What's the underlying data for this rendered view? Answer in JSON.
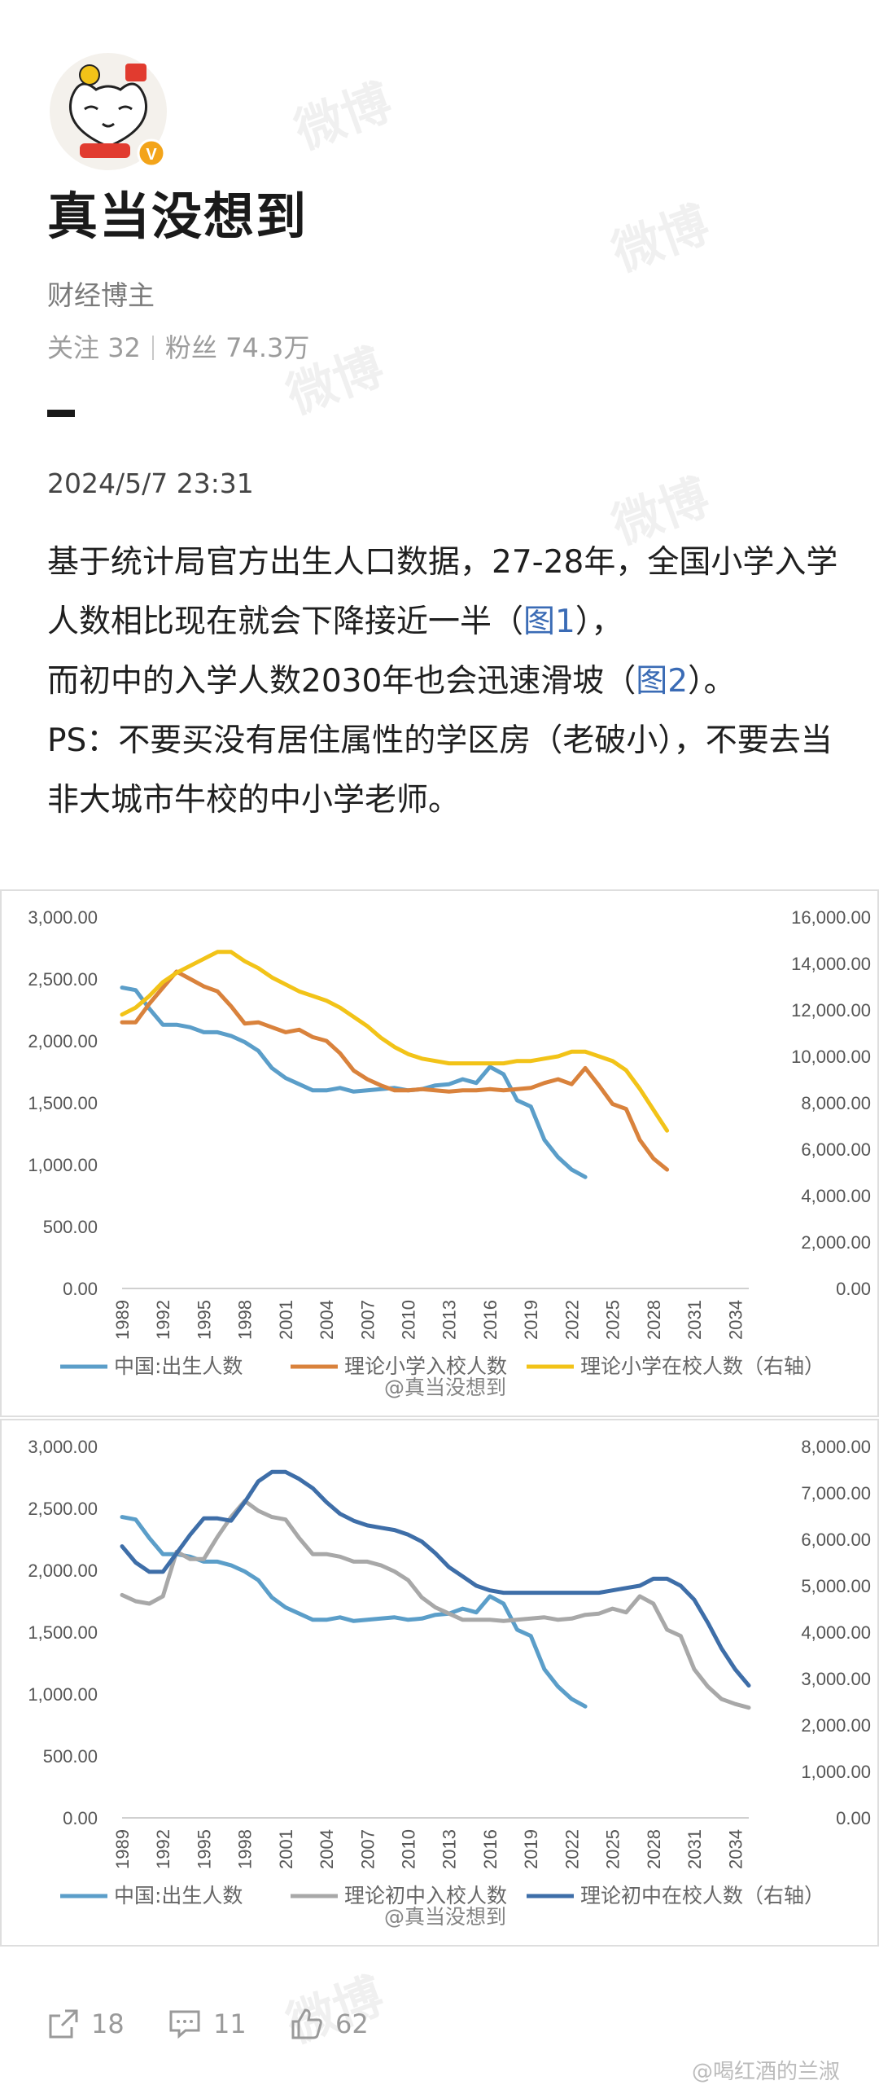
{
  "author": {
    "name": "真当没想到",
    "role": "财经博主",
    "following_label": "关注",
    "following": "32",
    "followers_label": "粉丝",
    "followers": "74.3万",
    "avatar_badge": "V"
  },
  "post": {
    "time": "2024/5/7 23:31",
    "p1a": "基于统计局官方出生人口数据，27-28年，全国小学入学人数相比现在就会下降接近一半（",
    "p1_link": "图1",
    "p1b": "），",
    "p2a": "而初中的入学人数2030年也会迅速滑坡（",
    "p2_link": "图2",
    "p2b": "）。",
    "p3": "PS：不要买没有居住属性的学区房（老破小），不要去当非大城市牛校的中小学老师。"
  },
  "actions": {
    "share": "18",
    "comment": "11",
    "like": "62"
  },
  "watermark_text": "微博",
  "image_watermark": "@真当没想到",
  "credit": "@喝红酒的兰淑",
  "colors": {
    "birth": "#5b9ec9",
    "primary_enroll": "#d9823c",
    "primary_school": "#f2c318",
    "middle_enroll": "#a8a8a8",
    "middle_school": "#3e6ea8"
  },
  "chart_data": [
    {
      "type": "line",
      "title": "",
      "x_ticks": [
        "1989",
        "1992",
        "1995",
        "1998",
        "2001",
        "2004",
        "2007",
        "2010",
        "2013",
        "2016",
        "2019",
        "2022",
        "2025",
        "2028",
        "2031",
        "2034"
      ],
      "xlim": [
        1989,
        2035
      ],
      "y_left": {
        "ticks": [
          "3,000.00",
          "2,500.00",
          "2,000.00",
          "1,500.00",
          "1,000.00",
          "500.00",
          "0.00"
        ],
        "range": [
          0,
          3000
        ]
      },
      "y_right": {
        "ticks": [
          "16,000.00",
          "14,000.00",
          "12,000.00",
          "10,000.00",
          "8,000.00",
          "6,000.00",
          "4,000.00",
          "2,000.00",
          "0.00"
        ],
        "range": [
          0,
          16000
        ]
      },
      "series": [
        {
          "name": "中国:出生人数",
          "axis": "left",
          "color_key": "birth",
          "x": [
            1989,
            1990,
            1991,
            1992,
            1993,
            1994,
            1995,
            1996,
            1997,
            1998,
            1999,
            2000,
            2001,
            2002,
            2003,
            2004,
            2005,
            2006,
            2007,
            2008,
            2009,
            2010,
            2011,
            2012,
            2013,
            2014,
            2015,
            2016,
            2017,
            2018,
            2019,
            2020,
            2021,
            2022,
            2023
          ],
          "values": [
            2430,
            2410,
            2260,
            2130,
            2130,
            2110,
            2070,
            2070,
            2040,
            1990,
            1920,
            1780,
            1700,
            1650,
            1600,
            1600,
            1620,
            1590,
            1600,
            1610,
            1620,
            1600,
            1610,
            1640,
            1650,
            1690,
            1660,
            1790,
            1730,
            1520,
            1470,
            1200,
            1060,
            960,
            900
          ]
        },
        {
          "name": "理论小学入校人数",
          "axis": "left",
          "color_key": "primary_enroll",
          "x": [
            1989,
            1990,
            1991,
            1992,
            1993,
            1994,
            1995,
            1996,
            1997,
            1998,
            1999,
            2000,
            2001,
            2002,
            2003,
            2004,
            2005,
            2006,
            2007,
            2008,
            2009,
            2010,
            2011,
            2012,
            2013,
            2014,
            2015,
            2016,
            2017,
            2018,
            2019,
            2020,
            2021,
            2022,
            2023,
            2024,
            2025,
            2026,
            2027,
            2028,
            2029
          ],
          "values": [
            2150,
            2150,
            2300,
            2430,
            2560,
            2500,
            2440,
            2400,
            2280,
            2140,
            2150,
            2110,
            2070,
            2090,
            2030,
            2000,
            1900,
            1760,
            1690,
            1640,
            1600,
            1600,
            1610,
            1600,
            1590,
            1600,
            1600,
            1610,
            1600,
            1610,
            1620,
            1660,
            1690,
            1650,
            1780,
            1640,
            1490,
            1450,
            1200,
            1050,
            960
          ]
        },
        {
          "name": "理论小学在校人数（右轴）",
          "axis": "right",
          "color_key": "primary_school",
          "x": [
            1989,
            1990,
            1991,
            1992,
            1993,
            1994,
            1995,
            1996,
            1997,
            1998,
            1999,
            2000,
            2001,
            2002,
            2003,
            2004,
            2005,
            2006,
            2007,
            2008,
            2009,
            2010,
            2011,
            2012,
            2013,
            2014,
            2015,
            2016,
            2017,
            2018,
            2019,
            2020,
            2021,
            2022,
            2023,
            2024,
            2025,
            2026,
            2027,
            2028,
            2029
          ],
          "values": [
            11800,
            12100,
            12600,
            13200,
            13600,
            13900,
            14200,
            14500,
            14500,
            14100,
            13800,
            13400,
            13100,
            12800,
            12600,
            12400,
            12100,
            11700,
            11300,
            10800,
            10400,
            10100,
            9900,
            9800,
            9700,
            9700,
            9700,
            9700,
            9700,
            9800,
            9800,
            9900,
            10000,
            10200,
            10200,
            10000,
            9800,
            9400,
            8600,
            7700,
            6800
          ]
        }
      ]
    },
    {
      "type": "line",
      "title": "",
      "x_ticks": [
        "1989",
        "1992",
        "1995",
        "1998",
        "2001",
        "2004",
        "2007",
        "2010",
        "2013",
        "2016",
        "2019",
        "2022",
        "2025",
        "2028",
        "2031",
        "2034"
      ],
      "xlim": [
        1989,
        2035
      ],
      "y_left": {
        "ticks": [
          "3,000.00",
          "2,500.00",
          "2,000.00",
          "1,500.00",
          "1,000.00",
          "500.00",
          "0.00"
        ],
        "range": [
          0,
          3000
        ]
      },
      "y_right": {
        "ticks": [
          "8,000.00",
          "7,000.00",
          "6,000.00",
          "5,000.00",
          "4,000.00",
          "3,000.00",
          "2,000.00",
          "1,000.00",
          "0.00"
        ],
        "range": [
          0,
          8000
        ]
      },
      "series": [
        {
          "name": "中国:出生人数",
          "axis": "left",
          "color_key": "birth",
          "x": [
            1989,
            1990,
            1991,
            1992,
            1993,
            1994,
            1995,
            1996,
            1997,
            1998,
            1999,
            2000,
            2001,
            2002,
            2003,
            2004,
            2005,
            2006,
            2007,
            2008,
            2009,
            2010,
            2011,
            2012,
            2013,
            2014,
            2015,
            2016,
            2017,
            2018,
            2019,
            2020,
            2021,
            2022,
            2023
          ],
          "values": [
            2430,
            2410,
            2260,
            2130,
            2130,
            2110,
            2070,
            2070,
            2040,
            1990,
            1920,
            1780,
            1700,
            1650,
            1600,
            1600,
            1620,
            1590,
            1600,
            1610,
            1620,
            1600,
            1610,
            1640,
            1650,
            1690,
            1660,
            1790,
            1730,
            1520,
            1470,
            1200,
            1060,
            960,
            900
          ]
        },
        {
          "name": "理论初中入校人数",
          "axis": "left",
          "color_key": "middle_enroll",
          "x": [
            1989,
            1990,
            1991,
            1992,
            1993,
            1994,
            1995,
            1996,
            1997,
            1998,
            1999,
            2000,
            2001,
            2002,
            2003,
            2004,
            2005,
            2006,
            2007,
            2008,
            2009,
            2010,
            2011,
            2012,
            2013,
            2014,
            2015,
            2016,
            2017,
            2018,
            2019,
            2020,
            2021,
            2022,
            2023,
            2024,
            2025,
            2026,
            2027,
            2028,
            2029,
            2030,
            2031,
            2032,
            2033,
            2034,
            2035
          ],
          "values": [
            1800,
            1750,
            1730,
            1790,
            2150,
            2090,
            2090,
            2270,
            2430,
            2560,
            2480,
            2430,
            2410,
            2260,
            2130,
            2130,
            2110,
            2070,
            2070,
            2040,
            1990,
            1920,
            1780,
            1700,
            1650,
            1600,
            1600,
            1600,
            1590,
            1600,
            1610,
            1620,
            1600,
            1610,
            1640,
            1650,
            1690,
            1660,
            1790,
            1730,
            1520,
            1470,
            1200,
            1060,
            960,
            920,
            890
          ]
        },
        {
          "name": "理论初中在校人数（右轴）",
          "axis": "right",
          "color_key": "middle_school",
          "x": [
            1989,
            1990,
            1991,
            1992,
            1993,
            1994,
            1995,
            1996,
            1997,
            1998,
            1999,
            2000,
            2001,
            2002,
            2003,
            2004,
            2005,
            2006,
            2007,
            2008,
            2009,
            2010,
            2011,
            2012,
            2013,
            2014,
            2015,
            2016,
            2017,
            2018,
            2019,
            2020,
            2021,
            2022,
            2023,
            2024,
            2025,
            2026,
            2027,
            2028,
            2029,
            2030,
            2031,
            2032,
            2033,
            2034,
            2035
          ],
          "values": [
            5850,
            5500,
            5300,
            5300,
            5700,
            6100,
            6450,
            6450,
            6400,
            6800,
            7250,
            7450,
            7450,
            7300,
            7100,
            6800,
            6550,
            6400,
            6300,
            6250,
            6200,
            6100,
            5950,
            5700,
            5400,
            5200,
            5000,
            4900,
            4850,
            4850,
            4850,
            4850,
            4850,
            4850,
            4850,
            4850,
            4900,
            4950,
            5000,
            5150,
            5150,
            5000,
            4700,
            4200,
            3650,
            3200,
            2850
          ]
        }
      ]
    }
  ]
}
